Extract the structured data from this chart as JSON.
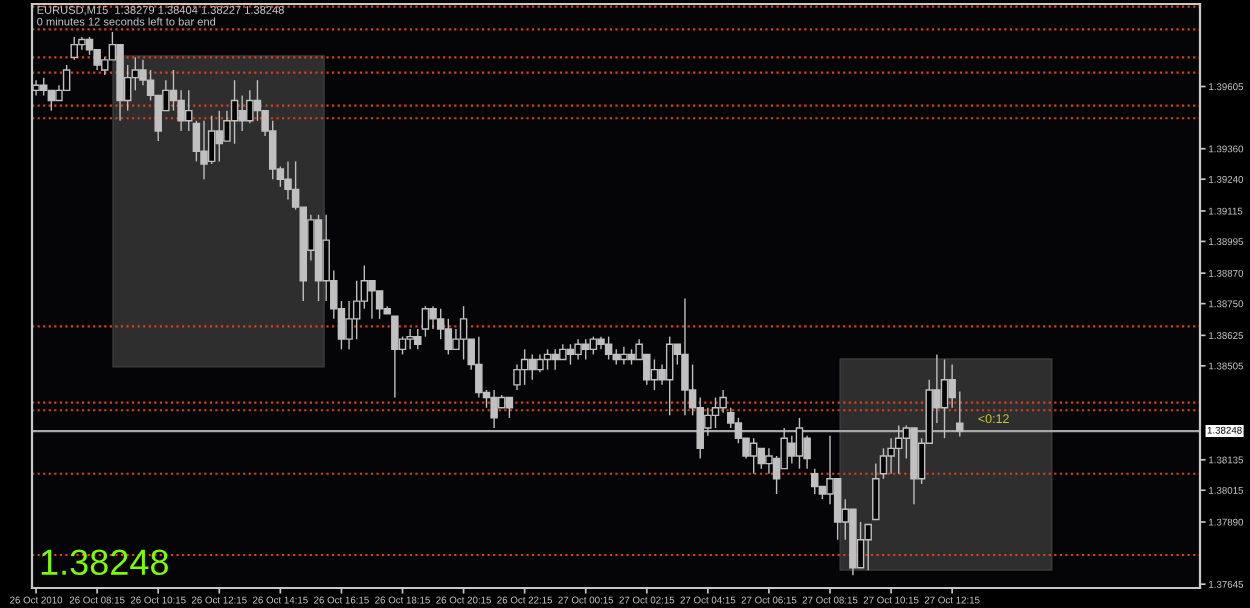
{
  "chart_data": {
    "type": "candlestick",
    "color": "#c0c0c0",
    "annotations": [
      "EURUSD,M15  1.38279 1.38404 1.38227 1.38248",
      "0 minutes 12 seconds left to bar end",
      "1.38248",
      {
        "text": "<0:12",
        "x": "2010-10-27T13:00",
        "y": 1.38248
      }
    ],
    "x": [
      "2010-10-26T06:15",
      "2010-10-26T06:30",
      "2010-10-26T06:45",
      "2010-10-26T07:00",
      "2010-10-26T07:15",
      "2010-10-26T07:30",
      "2010-10-26T07:45",
      "2010-10-26T08:00",
      "2010-10-26T08:15",
      "2010-10-26T08:30",
      "2010-10-26T08:45",
      "2010-10-26T09:00",
      "2010-10-26T09:15",
      "2010-10-26T09:30",
      "2010-10-26T09:45",
      "2010-10-26T10:00",
      "2010-10-26T10:15",
      "2010-10-26T10:30",
      "2010-10-26T10:45",
      "2010-10-26T11:00",
      "2010-10-26T11:15",
      "2010-10-26T11:30",
      "2010-10-26T11:45",
      "2010-10-26T12:00",
      "2010-10-26T12:15",
      "2010-10-26T12:30",
      "2010-10-26T12:45",
      "2010-10-26T13:00",
      "2010-10-26T13:15",
      "2010-10-26T13:30",
      "2010-10-26T13:45",
      "2010-10-26T14:00",
      "2010-10-26T14:15",
      "2010-10-26T14:30",
      "2010-10-26T14:45",
      "2010-10-26T15:00",
      "2010-10-26T15:15",
      "2010-10-26T15:30",
      "2010-10-26T15:45",
      "2010-10-26T16:00",
      "2010-10-26T16:15",
      "2010-10-26T16:30",
      "2010-10-26T16:45",
      "2010-10-26T17:00",
      "2010-10-26T17:15",
      "2010-10-26T17:30",
      "2010-10-26T17:45",
      "2010-10-26T18:00",
      "2010-10-26T18:15",
      "2010-10-26T18:30",
      "2010-10-26T18:45",
      "2010-10-26T19:00",
      "2010-10-26T19:15",
      "2010-10-26T19:30",
      "2010-10-26T19:45",
      "2010-10-26T20:00",
      "2010-10-26T20:15",
      "2010-10-26T20:30",
      "2010-10-26T20:45",
      "2010-10-26T21:00",
      "2010-10-26T21:15",
      "2010-10-26T21:30",
      "2010-10-26T21:45",
      "2010-10-26T22:00",
      "2010-10-26T22:15",
      "2010-10-26T22:30",
      "2010-10-26T22:45",
      "2010-10-26T23:00",
      "2010-10-26T23:15",
      "2010-10-26T23:30",
      "2010-10-26T23:45",
      "2010-10-27T00:00",
      "2010-10-27T00:15",
      "2010-10-27T00:30",
      "2010-10-27T00:45",
      "2010-10-27T01:00",
      "2010-10-27T01:15",
      "2010-10-27T01:30",
      "2010-10-27T01:45",
      "2010-10-27T02:00",
      "2010-10-27T02:15",
      "2010-10-27T02:30",
      "2010-10-27T02:45",
      "2010-10-27T03:00",
      "2010-10-27T03:15",
      "2010-10-27T03:30",
      "2010-10-27T03:45",
      "2010-10-27T04:00",
      "2010-10-27T04:15",
      "2010-10-27T04:30",
      "2010-10-27T04:45",
      "2010-10-27T05:00",
      "2010-10-27T05:15",
      "2010-10-27T05:30",
      "2010-10-27T05:45",
      "2010-10-27T06:00",
      "2010-10-27T06:15",
      "2010-10-27T06:30",
      "2010-10-27T06:45",
      "2010-10-27T07:00",
      "2010-10-27T07:15",
      "2010-10-27T07:30",
      "2010-10-27T07:45",
      "2010-10-27T08:00",
      "2010-10-27T08:15",
      "2010-10-27T08:30",
      "2010-10-27T08:45",
      "2010-10-27T09:00",
      "2010-10-27T09:15",
      "2010-10-27T09:30",
      "2010-10-27T09:45",
      "2010-10-27T10:00",
      "2010-10-27T10:15",
      "2010-10-27T10:30",
      "2010-10-27T10:45",
      "2010-10-27T11:00",
      "2010-10-27T11:15",
      "2010-10-27T11:30",
      "2010-10-27T11:45",
      "2010-10-27T12:00",
      "2010-10-27T12:15",
      "2010-10-27T12:30"
    ],
    "ohlc": [
      [
        1.3959,
        1.3963,
        1.3957,
        1.3961
      ],
      [
        1.3961,
        1.3964,
        1.3957,
        1.3959
      ],
      [
        1.3959,
        1.3959,
        1.3951,
        1.3955
      ],
      [
        1.3955,
        1.3961,
        1.3955,
        1.3959
      ],
      [
        1.3959,
        1.3969,
        1.3959,
        1.3967
      ],
      [
        1.3972,
        1.398,
        1.3971,
        1.3977
      ],
      [
        1.3977,
        1.398,
        1.3975,
        1.3979
      ],
      [
        1.3979,
        1.398,
        1.3973,
        1.3975
      ],
      [
        1.3975,
        1.3975,
        1.3967,
        1.3969
      ],
      [
        1.3967,
        1.3972,
        1.3965,
        1.3971
      ],
      [
        1.3971,
        1.3982,
        1.3971,
        1.3977
      ],
      [
        1.3977,
        1.3977,
        1.3947,
        1.3955
      ],
      [
        1.3955,
        1.3969,
        1.3951,
        1.3964
      ],
      [
        1.3964,
        1.3972,
        1.3959,
        1.3967
      ],
      [
        1.3967,
        1.3971,
        1.3961,
        1.3963
      ],
      [
        1.3963,
        1.3967,
        1.3955,
        1.3957
      ],
      [
        1.3957,
        1.3957,
        1.3939,
        1.3943
      ],
      [
        1.3951,
        1.3963,
        1.3951,
        1.3959
      ],
      [
        1.3959,
        1.3967,
        1.3951,
        1.3955
      ],
      [
        1.3955,
        1.3959,
        1.3943,
        1.3947
      ],
      [
        1.3947,
        1.3959,
        1.3943,
        1.3951
      ],
      [
        1.3946,
        1.3947,
        1.3931,
        1.3935
      ],
      [
        1.3935,
        1.3947,
        1.3924,
        1.393
      ],
      [
        1.3931,
        1.3949,
        1.393,
        1.3943
      ],
      [
        1.3943,
        1.3951,
        1.3931,
        1.3938
      ],
      [
        1.3939,
        1.3951,
        1.3939,
        1.3947
      ],
      [
        1.3947,
        1.3963,
        1.3938,
        1.3955
      ],
      [
        1.3951,
        1.3957,
        1.3943,
        1.3947
      ],
      [
        1.3947,
        1.3959,
        1.3946,
        1.3955
      ],
      [
        1.3955,
        1.3963,
        1.3947,
        1.3951
      ],
      [
        1.3951,
        1.3951,
        1.3941,
        1.3943
      ],
      [
        1.3943,
        1.3947,
        1.3924,
        1.3928
      ],
      [
        1.3928,
        1.3929,
        1.3921,
        1.3924
      ],
      [
        1.3924,
        1.3931,
        1.3916,
        1.392
      ],
      [
        1.392,
        1.3931,
        1.3912,
        1.3913
      ],
      [
        1.3913,
        1.3913,
        1.3876,
        1.3884
      ],
      [
        1.3896,
        1.391,
        1.3892,
        1.3908
      ],
      [
        1.3908,
        1.391,
        1.3876,
        1.3884
      ],
      [
        1.3884,
        1.391,
        1.3876,
        1.39
      ],
      [
        1.3884,
        1.3888,
        1.3869,
        1.3873
      ],
      [
        1.3873,
        1.3876,
        1.3857,
        1.3861
      ],
      [
        1.3861,
        1.3876,
        1.3857,
        1.3869
      ],
      [
        1.3869,
        1.3884,
        1.3861,
        1.3876
      ],
      [
        1.3876,
        1.389,
        1.3873,
        1.3884
      ],
      [
        1.3884,
        1.3884,
        1.3869,
        1.388
      ],
      [
        1.388,
        1.388,
        1.3869,
        1.3873
      ],
      [
        1.3873,
        1.3874,
        1.3871,
        1.3871
      ],
      [
        1.387,
        1.387,
        1.3838,
        1.3857
      ],
      [
        1.3857,
        1.3862,
        1.3855,
        1.3861
      ],
      [
        1.3861,
        1.3865,
        1.3857,
        1.3862
      ],
      [
        1.3862,
        1.3865,
        1.3857,
        1.3859
      ],
      [
        1.3865,
        1.3874,
        1.3862,
        1.3873
      ],
      [
        1.3873,
        1.3874,
        1.3865,
        1.3869
      ],
      [
        1.3869,
        1.3873,
        1.3861,
        1.3865
      ],
      [
        1.3865,
        1.3869,
        1.3855,
        1.3857
      ],
      [
        1.3857,
        1.3865,
        1.3857,
        1.3861
      ],
      [
        1.3861,
        1.3874,
        1.3853,
        1.3869
      ],
      [
        1.3861,
        1.3861,
        1.3849,
        1.3851
      ],
      [
        1.3851,
        1.3862,
        1.3838,
        1.384
      ],
      [
        1.384,
        1.3841,
        1.3834,
        1.3838
      ],
      [
        1.3838,
        1.3841,
        1.3826,
        1.383
      ],
      [
        1.3834,
        1.3839,
        1.3834,
        1.3838
      ],
      [
        1.3838,
        1.3838,
        1.383,
        1.3834
      ],
      [
        1.3843,
        1.3851,
        1.3841,
        1.3849
      ],
      [
        1.3849,
        1.3857,
        1.3843,
        1.3853
      ],
      [
        1.3853,
        1.3855,
        1.3845,
        1.3849
      ],
      [
        1.3849,
        1.3855,
        1.3848,
        1.3853
      ],
      [
        1.3853,
        1.3857,
        1.3849,
        1.3855
      ],
      [
        1.3855,
        1.3857,
        1.3849,
        1.3853
      ],
      [
        1.3853,
        1.3859,
        1.3853,
        1.3857
      ],
      [
        1.3857,
        1.3859,
        1.3851,
        1.3855
      ],
      [
        1.3855,
        1.3861,
        1.3853,
        1.3859
      ],
      [
        1.3859,
        1.3861,
        1.3853,
        1.3857
      ],
      [
        1.3857,
        1.3862,
        1.3855,
        1.3861
      ],
      [
        1.3861,
        1.3862,
        1.3857,
        1.3859
      ],
      [
        1.3859,
        1.3862,
        1.3853,
        1.3855
      ],
      [
        1.3855,
        1.3857,
        1.3851,
        1.3853
      ],
      [
        1.3853,
        1.3858,
        1.3851,
        1.3855
      ],
      [
        1.3855,
        1.3857,
        1.3851,
        1.3853
      ],
      [
        1.3853,
        1.3861,
        1.3853,
        1.3859
      ],
      [
        1.3855,
        1.3855,
        1.3843,
        1.3845
      ],
      [
        1.3845,
        1.3853,
        1.3841,
        1.3849
      ],
      [
        1.3849,
        1.3851,
        1.3843,
        1.3845
      ],
      [
        1.3845,
        1.3862,
        1.3831,
        1.3859
      ],
      [
        1.3859,
        1.3859,
        1.3851,
        1.3855
      ],
      [
        1.3855,
        1.3877,
        1.3831,
        1.3841
      ],
      [
        1.3841,
        1.3851,
        1.3831,
        1.3834
      ],
      [
        1.3834,
        1.3838,
        1.3814,
        1.3818
      ],
      [
        1.3826,
        1.3834,
        1.3823,
        1.3831
      ],
      [
        1.3831,
        1.3838,
        1.3826,
        1.3834
      ],
      [
        1.3834,
        1.3841,
        1.3832,
        1.3838
      ],
      [
        1.3832,
        1.3834,
        1.3826,
        1.3828
      ],
      [
        1.3828,
        1.383,
        1.382,
        1.3822
      ],
      [
        1.3822,
        1.3822,
        1.3814,
        1.3815
      ],
      [
        1.3815,
        1.3822,
        1.3808,
        1.382
      ],
      [
        1.3818,
        1.3818,
        1.381,
        1.3812
      ],
      [
        1.3812,
        1.3818,
        1.3808,
        1.3815
      ],
      [
        1.3814,
        1.3815,
        1.38,
        1.3806
      ],
      [
        1.381,
        1.3826,
        1.381,
        1.3822
      ],
      [
        1.382,
        1.3823,
        1.3812,
        1.3815
      ],
      [
        1.3815,
        1.383,
        1.381,
        1.3826
      ],
      [
        1.3822,
        1.3823,
        1.381,
        1.3814
      ],
      [
        1.3808,
        1.381,
        1.38,
        1.3803
      ],
      [
        1.3803,
        1.3803,
        1.3798,
        1.38
      ],
      [
        1.38,
        1.3823,
        1.3796,
        1.3806
      ],
      [
        1.3806,
        1.3806,
        1.3782,
        1.3789
      ],
      [
        1.3789,
        1.3798,
        1.3782,
        1.3794
      ],
      [
        1.3794,
        1.3794,
        1.3768,
        1.3771
      ],
      [
        1.3771,
        1.3789,
        1.3771,
        1.3782
      ],
      [
        1.3782,
        1.3788,
        1.377,
        1.3788
      ],
      [
        1.379,
        1.3812,
        1.379,
        1.3806
      ],
      [
        1.3808,
        1.3818,
        1.3806,
        1.3815
      ],
      [
        1.3815,
        1.3822,
        1.3808,
        1.3818
      ],
      [
        1.3818,
        1.3827,
        1.3808,
        1.3822
      ],
      [
        1.3822,
        1.3827,
        1.3814,
        1.3826
      ],
      [
        1.3826,
        1.3826,
        1.3796,
        1.3806
      ],
      [
        1.3806,
        1.3822,
        1.3804,
        1.382
      ],
      [
        1.382,
        1.3845,
        1.382,
        1.3841
      ],
      [
        1.3841,
        1.3855,
        1.3828,
        1.3834
      ],
      [
        1.3834,
        1.3853,
        1.3822,
        1.3845
      ],
      [
        1.3845,
        1.3851,
        1.3834,
        1.3838
      ],
      [
        1.38279,
        1.38404,
        1.38227,
        1.38248
      ]
    ],
    "xlim": [
      "2010-10-26T06:07",
      "2010-10-27T20:22"
    ],
    "xticks": [
      {
        "value": "2010-10-26T06:15",
        "label": "26 Oct 2010"
      },
      {
        "value": "2010-10-26T08:15",
        "label": "26 Oct 08:15"
      },
      {
        "value": "2010-10-26T10:15",
        "label": "26 Oct 10:15"
      },
      {
        "value": "2010-10-26T12:15",
        "label": "26 Oct 12:15"
      },
      {
        "value": "2010-10-26T14:15",
        "label": "26 Oct 14:15"
      },
      {
        "value": "2010-10-26T16:15",
        "label": "26 Oct 16:15"
      },
      {
        "value": "2010-10-26T18:15",
        "label": "26 Oct 18:15"
      },
      {
        "value": "2010-10-26T20:15",
        "label": "26 Oct 20:15"
      },
      {
        "value": "2010-10-26T22:15",
        "label": "26 Oct 22:15"
      },
      {
        "value": "2010-10-27T00:15",
        "label": "27 Oct 00:15"
      },
      {
        "value": "2010-10-27T02:15",
        "label": "27 Oct 02:15"
      },
      {
        "value": "2010-10-27T04:15",
        "label": "27 Oct 04:15"
      },
      {
        "value": "2010-10-27T06:15",
        "label": "27 Oct 06:15"
      },
      {
        "value": "2010-10-27T08:15",
        "label": "27 Oct 08:15"
      },
      {
        "value": "2010-10-27T10:15",
        "label": "27 Oct 10:15"
      },
      {
        "value": "2010-10-27T12:15",
        "label": "27 Oct 12:15"
      }
    ],
    "ylim": [
      1.3763,
      1.3993
    ],
    "yticks": [
      {
        "value": 1.39605,
        "label": "1.39605"
      },
      {
        "value": 1.3936,
        "label": "1.39360"
      },
      {
        "value": 1.3924,
        "label": "1.39240"
      },
      {
        "value": 1.39115,
        "label": "1.39115"
      },
      {
        "value": 1.38995,
        "label": "1.38995"
      },
      {
        "value": 1.3887,
        "label": "1.38870"
      },
      {
        "value": 1.3875,
        "label": "1.38750"
      },
      {
        "value": 1.38625,
        "label": "1.38625"
      },
      {
        "value": 1.38505,
        "label": "1.38505"
      },
      {
        "value": 1.38135,
        "label": "1.38135"
      },
      {
        "value": 1.38015,
        "label": "1.38015"
      },
      {
        "value": 1.3789,
        "label": "1.37890"
      },
      {
        "value": 1.37645,
        "label": "1.37645"
      }
    ],
    "ref_lines": [
      {
        "axis": "y",
        "value": 1.3992,
        "color": "#d9401c",
        "line_style": "dotted"
      },
      {
        "axis": "y",
        "value": 1.3983,
        "color": "#d9401c",
        "line_style": "dotted"
      },
      {
        "axis": "y",
        "value": 1.3972,
        "color": "#d9401c",
        "line_style": "dotted"
      },
      {
        "axis": "y",
        "value": 1.3966,
        "color": "#d9401c",
        "line_style": "dotted"
      },
      {
        "axis": "y",
        "value": 1.3953,
        "color": "#d9401c",
        "line_style": "dotted"
      },
      {
        "axis": "y",
        "value": 1.3948,
        "color": "#d9401c",
        "line_style": "dotted"
      },
      {
        "axis": "y",
        "value": 1.3866,
        "color": "#d9401c",
        "line_style": "dotted"
      },
      {
        "axis": "y",
        "value": 1.3836,
        "color": "#d9401c",
        "line_style": "dotted"
      },
      {
        "axis": "y",
        "value": 1.3833,
        "color": "#d9401c",
        "line_style": "dotted"
      },
      {
        "axis": "y",
        "value": 1.3808,
        "color": "#d9401c",
        "line_style": "dotted"
      },
      {
        "axis": "y",
        "value": 1.3776,
        "color": "#d9401c",
        "line_style": "dotted"
      },
      {
        "axis": "y",
        "value": 1.38248,
        "label": "1.38248",
        "color": "#a8a8a8",
        "line_style": "solid"
      }
    ]
  }
}
